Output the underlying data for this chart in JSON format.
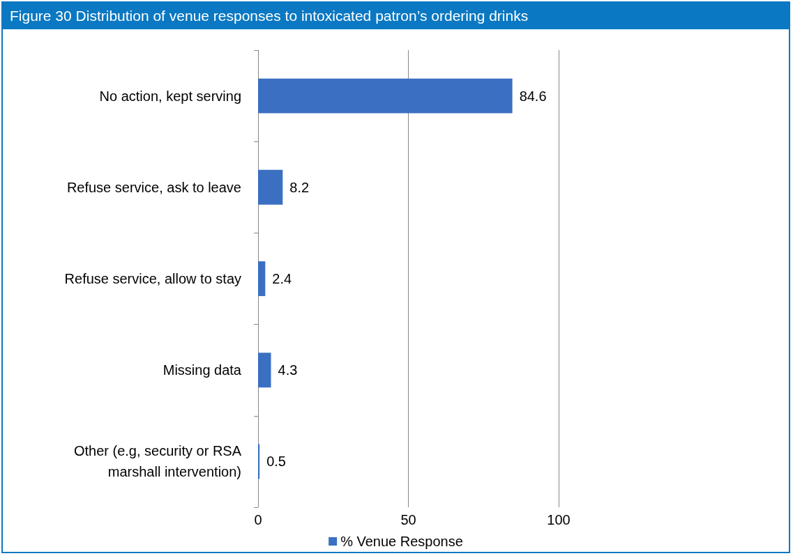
{
  "chart_data": {
    "type": "bar",
    "orientation": "horizontal",
    "title": "Figure 30 Distribution of venue responses to intoxicated patron’s ordering drinks",
    "categories": [
      "No action, kept serving",
      "Refuse service, ask to leave",
      "Refuse service, allow to stay",
      "Missing data",
      "Other (e.g, security or RSA\nmarshall intervention)"
    ],
    "series": [
      {
        "name": "% Venue Response",
        "color": "#3b6fc2",
        "values": [
          84.6,
          8.2,
          2.4,
          4.3,
          0.5
        ]
      }
    ],
    "xlim": [
      0,
      100
    ],
    "xticks": [
      0,
      50,
      100
    ],
    "grid": "x",
    "legend": "bottom",
    "data_labels": true
  }
}
